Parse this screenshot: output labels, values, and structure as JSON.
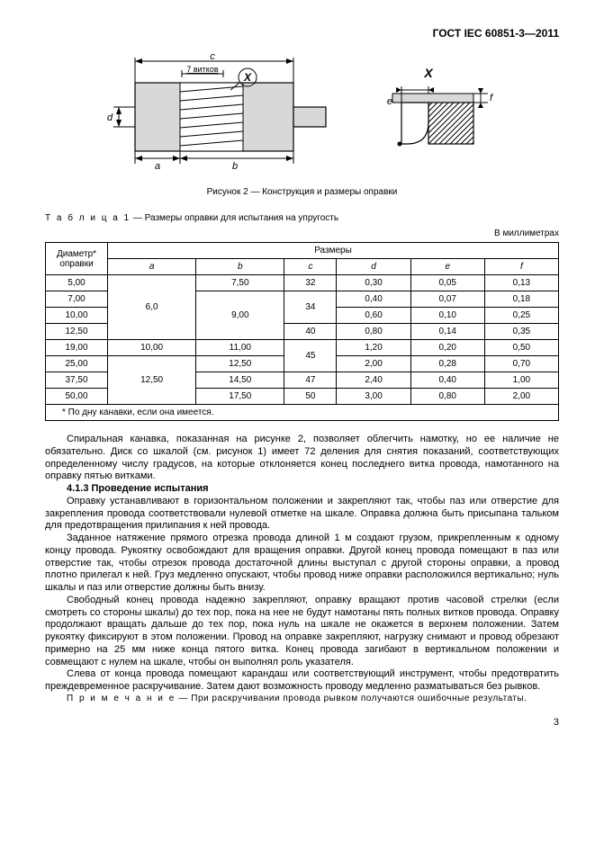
{
  "header": {
    "standard": "ГОСТ IEC 60851-3—2011"
  },
  "figure": {
    "caption": "Рисунок 2 — Конструкция и размеры оправки",
    "coil_label": "7 витков",
    "letters": {
      "c": "c",
      "x": "X",
      "a": "a",
      "b": "b",
      "d": "d",
      "e": "e",
      "f": "f"
    }
  },
  "table": {
    "title_prefix": "Т а б л и ц а  1",
    "title_rest": " — Размеры оправки для испытания на упругость",
    "units": "В миллиметрах",
    "head_dia_1": "Диаметр*",
    "head_dia_2": "оправки",
    "head_sizes": "Размеры",
    "cols": [
      "a",
      "b",
      "c",
      "d",
      "e",
      "f"
    ],
    "rows": [
      {
        "dia": "5,00",
        "a": "6,0",
        "b": "7,50",
        "c": "32",
        "d": "0,30",
        "e": "0,05",
        "f": "0,13",
        "a_rowspan": 4
      },
      {
        "dia": "7,00",
        "b": "9,00",
        "c": "34",
        "d": "0,40",
        "e": "0,07",
        "f": "0,18",
        "b_rowspan": 3,
        "c_rowspan": 2
      },
      {
        "dia": "10,00",
        "d": "0,60",
        "e": "0,10",
        "f": "0,25"
      },
      {
        "dia": "12,50",
        "c": "40",
        "d": "0,80",
        "e": "0,14",
        "f": "0,35"
      },
      {
        "dia": "19,00",
        "a": "10,00",
        "b": "11,00",
        "c": "45",
        "d": "1,20",
        "e": "0,20",
        "f": "0,50",
        "c_rowspan": 2
      },
      {
        "dia": "25,00",
        "a": "12,50",
        "b": "12,50",
        "d": "2,00",
        "e": "0,28",
        "f": "0,70",
        "a_rowspan": 3
      },
      {
        "dia": "37,50",
        "b": "14,50",
        "c": "47",
        "d": "2,40",
        "e": "0,40",
        "f": "1,00"
      },
      {
        "dia": "50,00",
        "b": "17,50",
        "c": "50",
        "d": "3,00",
        "e": "0,80",
        "f": "2,00"
      }
    ],
    "footnote": "*  По дну канавки, если она имеется."
  },
  "text": {
    "p1": "Спиральная канавка, показанная на рисунке 2, позволяет облегчить намотку, но ее наличие не обязательно. Диск со шкалой (см. рисунок 1) имеет 72 деления для снятия показаний, соответствующих определенному числу градусов, на которые отклоняется конец последнего витка провода, намотанного на оправку пятью витками.",
    "h1": "4.1.3 Проведение испытания",
    "p2": "Оправку устанавливают в горизонтальном положении и закрепляют так, чтобы паз или отверстие для закрепления провода соответствовали нулевой отметке на шкале. Оправка должна быть присыпана тальком для предотвращения прилипания к ней провода.",
    "p3": "Заданное натяжение прямого отрезка провода длиной 1 м создают грузом, прикрепленным к одному концу провода. Рукоятку освобождают для вращения оправки. Другой конец провода помещают в паз или отверстие так, чтобы отрезок провода достаточной длины выступал с другой стороны оправки, а провод плотно прилегал к ней. Груз медленно опускают, чтобы провод ниже оправки расположился вертикально; нуль шкалы и паз или отверстие должны быть внизу.",
    "p4": "Свободный конец провода надежно закрепляют, оправку вращают против часовой стрелки (если смотреть со стороны шкалы) до тех пор, пока на нее не будут намотаны пять полных витков провода. Оправку продолжают вращать дальше до тех пор, пока нуль на шкале не окажется в верхнем положении. Затем рукоятку фиксируют в этом положении. Провод на оправке закрепляют, нагрузку снимают и провод обрезают примерно на 25 мм ниже конца пятого витка. Конец провода загибают в вертикальном положении и совмещают с нулем на шкале, чтобы он выполнял роль указателя.",
    "p5": "Слева от конца провода помещают карандаш или соответствующий инструмент, чтобы предотвратить преждевременное раскручивание. Затем дают возможность проводу медленно разматываться без рывков.",
    "note_prefix": "П р и м е ч а н и е",
    "note_rest": " — При раскручивании провода рывком получаются ошибочные результаты."
  },
  "pagenum": "3",
  "svg": {
    "body_fill": "#d8d8d8",
    "hatch_stroke": "#000",
    "line_w": 1.2
  }
}
